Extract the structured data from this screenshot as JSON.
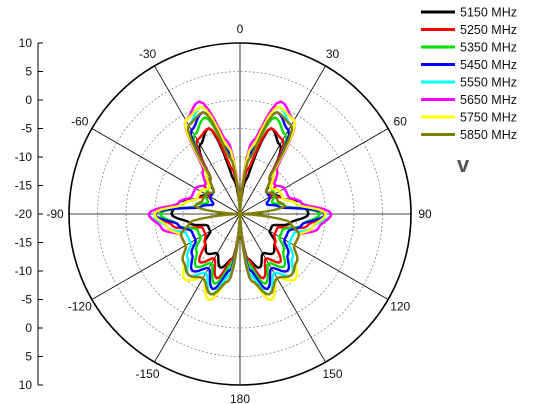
{
  "chart_data": {
    "type": "polar-line",
    "panel_label": "v",
    "radial_axis": {
      "ticks": [
        "10",
        "5",
        "0",
        "-5",
        "-10",
        "-15",
        "-20",
        "-15",
        "-10",
        "-5",
        "0",
        "5",
        "10"
      ],
      "range": [
        -20,
        10
      ]
    },
    "angle_ticks": [
      "0",
      "30",
      "60",
      "90",
      "120",
      "150",
      "180",
      "-150",
      "-120",
      "-90",
      "-60",
      "-30"
    ],
    "angle_values": [
      0,
      30,
      60,
      90,
      120,
      150,
      180,
      -150,
      -120,
      -90,
      -60,
      -30
    ],
    "grid": true,
    "legend_position": "top-right",
    "series": [
      {
        "name": "5150 MHz",
        "color": "#000000",
        "angles": [
          0,
          10,
          20,
          30,
          40,
          50,
          60,
          70,
          80,
          90,
          100,
          110,
          120,
          130,
          140,
          150,
          160,
          170,
          180,
          190,
          200,
          210,
          220,
          230,
          240,
          250,
          260,
          270,
          280,
          290,
          300,
          310,
          320,
          330,
          340,
          350,
          360
        ],
        "values": [
          -20,
          -14,
          -4,
          -6,
          -11,
          -14,
          -13,
          -12,
          -9,
          -8,
          -11,
          -14,
          -14,
          -12,
          -11,
          -12,
          -10,
          -12,
          -20,
          -12,
          -10,
          -12,
          -11,
          -12,
          -14,
          -14,
          -11,
          -8,
          -9,
          -12,
          -13,
          -14,
          -11,
          -6,
          -4,
          -14,
          -20
        ]
      },
      {
        "name": "5250 MHz",
        "color": "#ff0000",
        "angles": [
          0,
          10,
          20,
          30,
          40,
          50,
          60,
          70,
          80,
          90,
          100,
          110,
          120,
          130,
          140,
          150,
          160,
          170,
          180,
          190,
          200,
          210,
          220,
          230,
          240,
          250,
          260,
          270,
          280,
          290,
          300,
          310,
          320,
          330,
          340,
          350,
          360
        ],
        "values": [
          -20,
          -12,
          -4,
          -5,
          -12,
          -12,
          -14,
          -12,
          -10,
          -5,
          -8,
          -13,
          -13,
          -12,
          -9,
          -11,
          -8,
          -12,
          -20,
          -12,
          -8,
          -11,
          -9,
          -12,
          -13,
          -13,
          -8,
          -5,
          -10,
          -12,
          -14,
          -12,
          -12,
          -5,
          -4,
          -12,
          -20
        ]
      },
      {
        "name": "5350 MHz",
        "color": "#00e000",
        "angles": [
          0,
          10,
          20,
          30,
          40,
          50,
          60,
          70,
          80,
          90,
          100,
          110,
          120,
          130,
          140,
          150,
          160,
          170,
          180,
          190,
          200,
          210,
          220,
          230,
          240,
          250,
          260,
          270,
          280,
          290,
          300,
          310,
          320,
          330,
          340,
          350,
          360
        ],
        "values": [
          -20,
          -10,
          -2,
          -4,
          -11,
          -13,
          -13,
          -14,
          -12,
          -6,
          -9,
          -12,
          -12,
          -10,
          -8,
          -10,
          -7,
          -11,
          -20,
          -11,
          -7,
          -10,
          -8,
          -10,
          -12,
          -12,
          -9,
          -6,
          -12,
          -14,
          -13,
          -13,
          -11,
          -4,
          -2,
          -10,
          -20
        ]
      },
      {
        "name": "5450 MHz",
        "color": "#0000ff",
        "angles": [
          0,
          10,
          20,
          30,
          40,
          50,
          60,
          70,
          80,
          90,
          100,
          110,
          120,
          130,
          140,
          150,
          160,
          170,
          180,
          190,
          200,
          210,
          220,
          230,
          240,
          250,
          260,
          270,
          280,
          290,
          300,
          310,
          320,
          330,
          340,
          350,
          360
        ],
        "values": [
          -20,
          -9,
          -1,
          -3,
          -12,
          -14,
          -14,
          -15,
          -13,
          -5,
          -9,
          -11,
          -11,
          -9,
          -7,
          -9,
          -6,
          -10,
          -20,
          -10,
          -6,
          -9,
          -7,
          -9,
          -11,
          -11,
          -9,
          -5,
          -13,
          -15,
          -14,
          -14,
          -12,
          -3,
          -1,
          -9,
          -20
        ]
      },
      {
        "name": "5550 MHz",
        "color": "#00ffff",
        "angles": [
          0,
          10,
          20,
          30,
          40,
          50,
          60,
          70,
          80,
          90,
          100,
          110,
          120,
          130,
          140,
          150,
          160,
          170,
          180,
          190,
          200,
          210,
          220,
          230,
          240,
          250,
          260,
          270,
          280,
          290,
          300,
          310,
          320,
          330,
          340,
          350,
          360
        ],
        "values": [
          -20,
          -8,
          0,
          -2,
          -11,
          -13,
          -12,
          -12,
          -10,
          -4,
          -7,
          -10,
          -10,
          -8,
          -6,
          -8,
          -5,
          -9,
          -20,
          -9,
          -5,
          -8,
          -6,
          -8,
          -10,
          -10,
          -7,
          -4,
          -10,
          -12,
          -12,
          -13,
          -11,
          -2,
          0,
          -8,
          -20
        ]
      },
      {
        "name": "5650 MHz",
        "color": "#ff00ff",
        "angles": [
          0,
          10,
          20,
          30,
          40,
          50,
          60,
          70,
          80,
          90,
          100,
          110,
          120,
          130,
          140,
          150,
          160,
          170,
          180,
          190,
          200,
          210,
          220,
          230,
          240,
          250,
          260,
          270,
          280,
          290,
          300,
          310,
          320,
          330,
          340,
          350,
          360
        ],
        "values": [
          -20,
          -7,
          1,
          -1,
          -10,
          -12,
          -11,
          -11,
          -9,
          -4,
          -6,
          -9,
          -9,
          -7,
          -6,
          -7,
          -4,
          -8,
          -20,
          -8,
          -4,
          -7,
          -6,
          -7,
          -9,
          -9,
          -6,
          -4,
          -9,
          -11,
          -11,
          -12,
          -10,
          -1,
          1,
          -7,
          -20
        ]
      },
      {
        "name": "5750 MHz",
        "color": "#ffff00",
        "angles": [
          0,
          10,
          20,
          30,
          40,
          50,
          60,
          70,
          80,
          90,
          100,
          110,
          120,
          130,
          140,
          150,
          160,
          170,
          180,
          190,
          200,
          210,
          220,
          230,
          240,
          250,
          260,
          270,
          280,
          290,
          300,
          310,
          320,
          330,
          340,
          350,
          360
        ],
        "values": [
          -20,
          -8,
          0,
          -1,
          -11,
          -13,
          -12,
          -12,
          -10,
          -5,
          -7,
          -9,
          -9,
          -7,
          -5,
          -7,
          -4,
          -8,
          -20,
          -8,
          -4,
          -7,
          -5,
          -7,
          -9,
          -9,
          -7,
          -5,
          -10,
          -12,
          -12,
          -13,
          -11,
          -1,
          0,
          -8,
          -20
        ]
      },
      {
        "name": "5850 MHz",
        "color": "#808000",
        "angles": [
          0,
          10,
          20,
          30,
          40,
          50,
          60,
          70,
          80,
          90,
          100,
          110,
          120,
          130,
          140,
          150,
          160,
          170,
          180,
          190,
          200,
          210,
          220,
          230,
          240,
          250,
          260,
          270,
          280,
          290,
          300,
          310,
          320,
          330,
          340,
          350,
          360
        ],
        "values": [
          -20,
          -10,
          -1,
          -2,
          -12,
          -14,
          -13,
          -13,
          -12,
          -20,
          -11,
          -9,
          -9,
          -7,
          -6,
          -7,
          -5,
          -8,
          -20,
          -8,
          -5,
          -7,
          -6,
          -7,
          -9,
          -9,
          -11,
          -20,
          -12,
          -13,
          -13,
          -14,
          -12,
          -2,
          -1,
          -10,
          -20
        ]
      }
    ]
  }
}
